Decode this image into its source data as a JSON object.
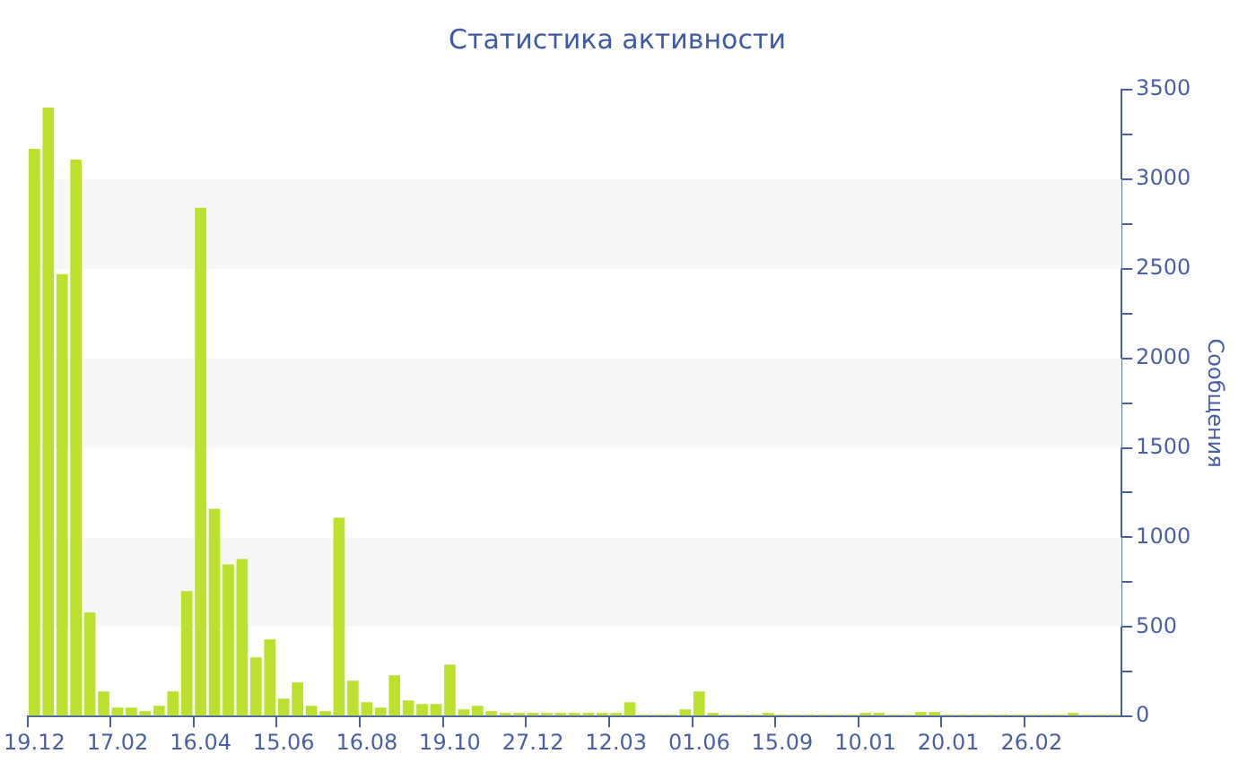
{
  "chart_data": {
    "type": "bar",
    "title": "Статистика активности",
    "ylabel": "Сообщения",
    "categories": [
      "19.12",
      null,
      null,
      null,
      null,
      null,
      "17.02",
      null,
      null,
      null,
      null,
      null,
      "16.04",
      null,
      null,
      null,
      null,
      null,
      "15.06",
      null,
      null,
      null,
      null,
      null,
      "16.08",
      null,
      null,
      null,
      null,
      null,
      "19.10",
      null,
      null,
      null,
      null,
      null,
      "27.12",
      null,
      null,
      null,
      null,
      null,
      "12.03",
      null,
      null,
      null,
      null,
      null,
      "01.06",
      null,
      null,
      null,
      null,
      null,
      "15.09",
      null,
      null,
      null,
      null,
      null,
      "10.01",
      null,
      null,
      null,
      null,
      null,
      "20.01",
      null,
      null,
      null,
      null,
      null,
      "26.02",
      null,
      null,
      null,
      null,
      null,
      null
    ],
    "values": [
      3170,
      3400,
      2470,
      3110,
      580,
      140,
      50,
      50,
      30,
      60,
      140,
      700,
      2840,
      1160,
      850,
      880,
      330,
      430,
      100,
      190,
      60,
      30,
      1110,
      200,
      80,
      50,
      230,
      90,
      70,
      70,
      290,
      40,
      60,
      30,
      20,
      20,
      20,
      20,
      20,
      20,
      20,
      20,
      20,
      80,
      10,
      10,
      10,
      40,
      140,
      20,
      10,
      10,
      10,
      20,
      10,
      10,
      10,
      10,
      10,
      10,
      20,
      20,
      10,
      10,
      25,
      25,
      10,
      10,
      10,
      10,
      10,
      10,
      10,
      10,
      10,
      20,
      10,
      10,
      10
    ],
    "color": "#bbe02e",
    "ylim": [
      0,
      3500
    ],
    "yticks": [
      0,
      {
        "value": 250,
        "label": null
      },
      500,
      {
        "value": 750,
        "label": null
      },
      1000,
      {
        "value": 1250,
        "label": null
      },
      1500,
      {
        "value": 1750,
        "label": null
      },
      2000,
      {
        "value": 2250,
        "label": null
      },
      2500,
      {
        "value": 2750,
        "label": null
      },
      3000,
      {
        "value": 3250,
        "label": null
      },
      3500
    ],
    "bands": [
      {
        "axis": "y",
        "from": 500,
        "to": 1000,
        "color": "#f7f7f7"
      },
      {
        "axis": "y",
        "from": 1500,
        "to": 2000,
        "color": "#f7f7f7"
      },
      {
        "axis": "y",
        "from": 2500,
        "to": 3000,
        "color": "#f7f7f7"
      }
    ],
    "grid": false,
    "legend": false
  }
}
